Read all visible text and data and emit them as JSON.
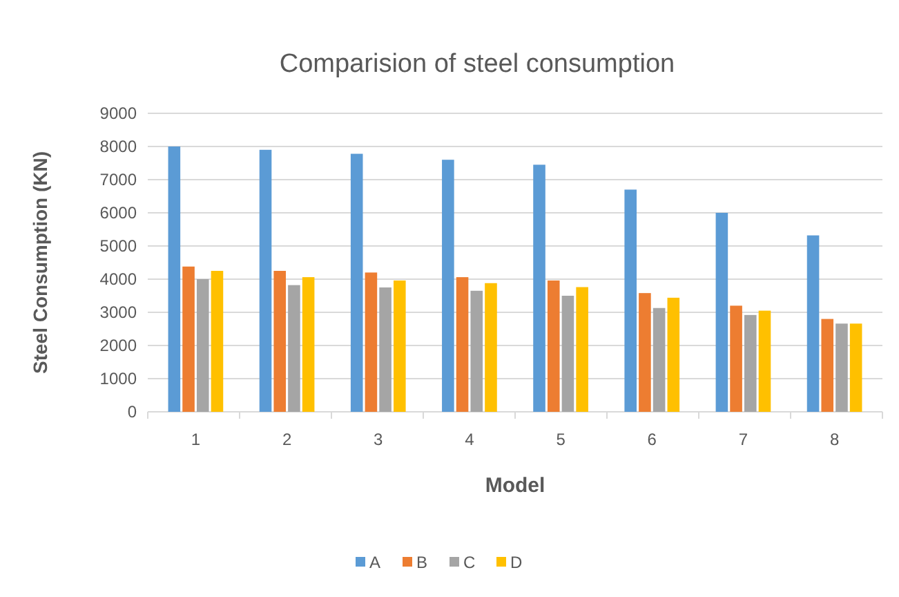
{
  "chart_data": {
    "type": "bar",
    "title": "Comparision of steel consumption",
    "xlabel": "Model",
    "ylabel": "Steel Consumption (KN)",
    "categories": [
      "1",
      "2",
      "3",
      "4",
      "5",
      "6",
      "7",
      "8"
    ],
    "series": [
      {
        "name": "A",
        "color": "#5b9bd5",
        "values": [
          8000,
          7900,
          7780,
          7600,
          7450,
          6700,
          6000,
          5320
        ]
      },
      {
        "name": "B",
        "color": "#ed7d31",
        "values": [
          4380,
          4250,
          4200,
          4060,
          3960,
          3580,
          3200,
          2800
        ]
      },
      {
        "name": "C",
        "color": "#a5a5a5",
        "values": [
          4000,
          3820,
          3750,
          3650,
          3500,
          3130,
          2920,
          2660
        ]
      },
      {
        "name": "D",
        "color": "#ffc000",
        "values": [
          4250,
          4060,
          3960,
          3880,
          3760,
          3440,
          3050,
          2660
        ]
      }
    ],
    "ylim": [
      0,
      9000
    ],
    "yticks": [
      0,
      1000,
      2000,
      3000,
      4000,
      5000,
      6000,
      7000,
      8000,
      9000
    ],
    "grid": "y",
    "legend": "bottom"
  }
}
